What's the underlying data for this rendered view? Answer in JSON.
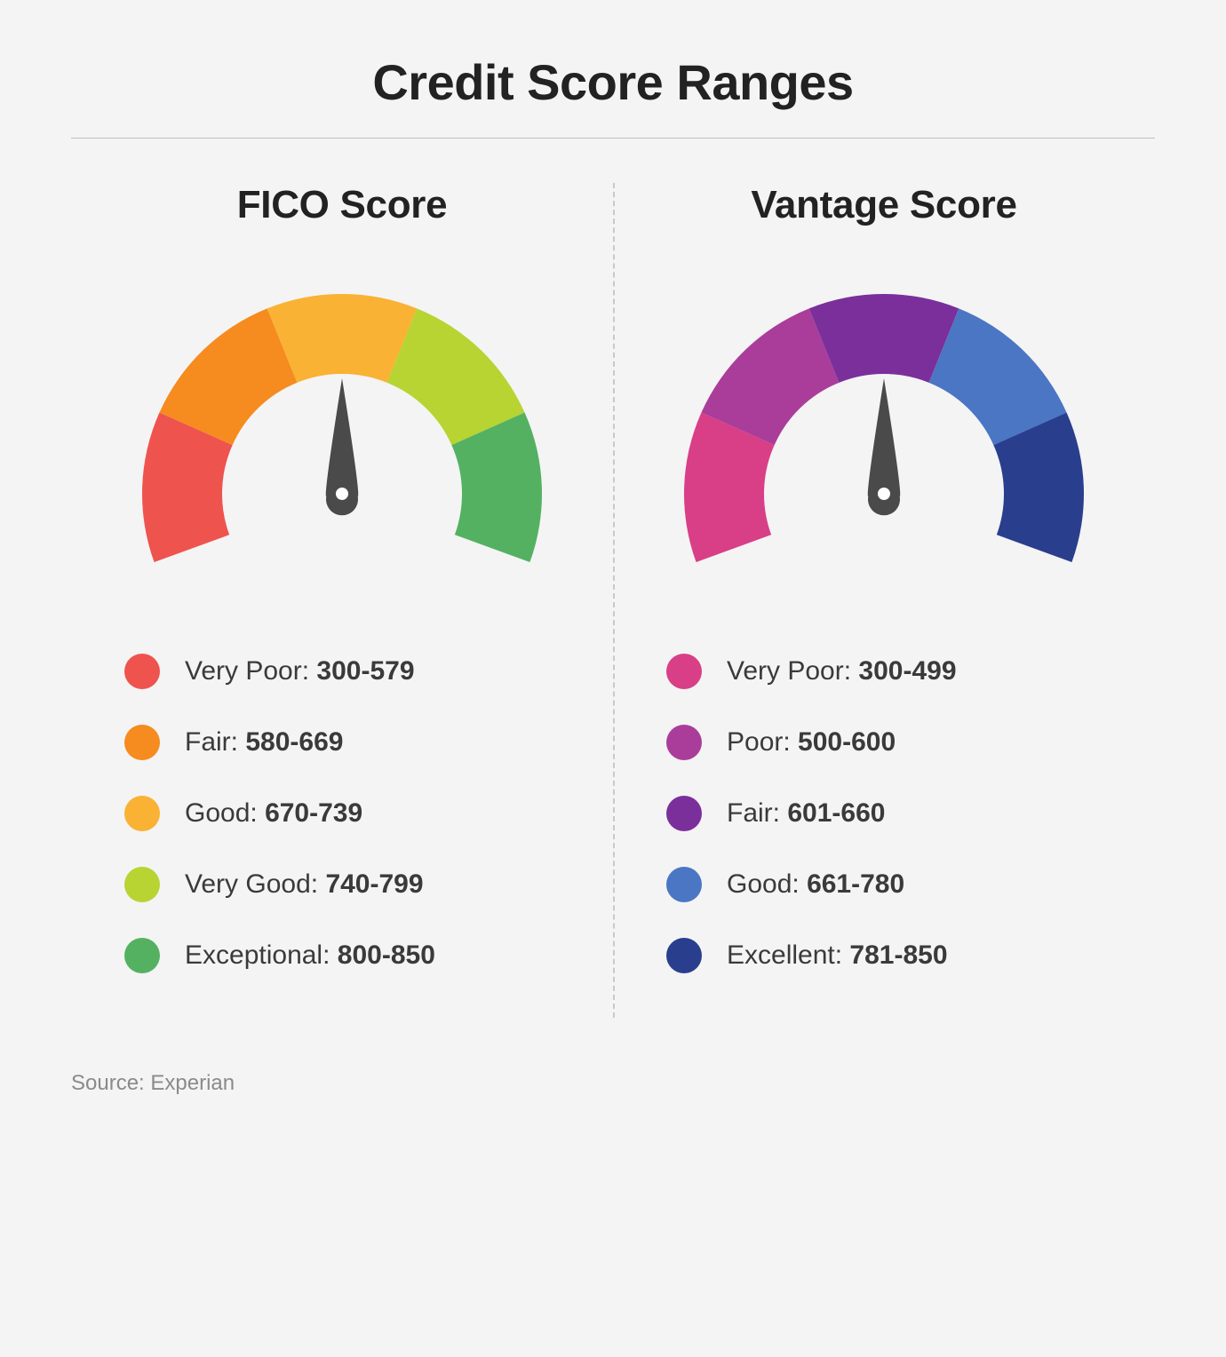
{
  "background_color": "#f4f4f4",
  "title": "Credit Score Ranges",
  "title_fontsize": 56,
  "title_color": "#1a1a1a",
  "divider_color": "#bfbfbf",
  "vseparator_color": "#c9c9c9",
  "gauge": {
    "type": "gauge",
    "outer_radius": 225,
    "inner_radius": 135,
    "start_angle_deg": 200,
    "end_angle_deg": -20,
    "needle_color": "#4a4a4a",
    "needle_angle_deg": 90,
    "segment_count": 5
  },
  "fico": {
    "subtitle": "FICO Score",
    "segments": [
      {
        "label": "Very Poor",
        "range": "300-579",
        "color": "#ef534e"
      },
      {
        "label": "Fair",
        "range": "580-669",
        "color": "#f68b1f"
      },
      {
        "label": "Good",
        "range": "670-739",
        "color": "#f9b233"
      },
      {
        "label": "Very Good",
        "range": "740-799",
        "color": "#b7d433"
      },
      {
        "label": "Exceptional",
        "range": "800-850",
        "color": "#54b162"
      }
    ]
  },
  "vantage": {
    "subtitle": "Vantage Score",
    "segments": [
      {
        "label": "Very Poor",
        "range": "300-499",
        "color": "#d83f87"
      },
      {
        "label": "Poor",
        "range": "500-600",
        "color": "#aa3d9a"
      },
      {
        "label": "Fair",
        "range": "601-660",
        "color": "#7a2f9b"
      },
      {
        "label": "Good",
        "range": "661-780",
        "color": "#4a76c4"
      },
      {
        "label": "Excellent",
        "range": "781-850",
        "color": "#2a3e8e"
      }
    ]
  },
  "legend": {
    "dot_size": 40,
    "fontsize": 30,
    "label_color": "#3a3a3a"
  },
  "source_prefix": "Source: ",
  "source_name": "Experian",
  "source_color": "#8a8a8a"
}
